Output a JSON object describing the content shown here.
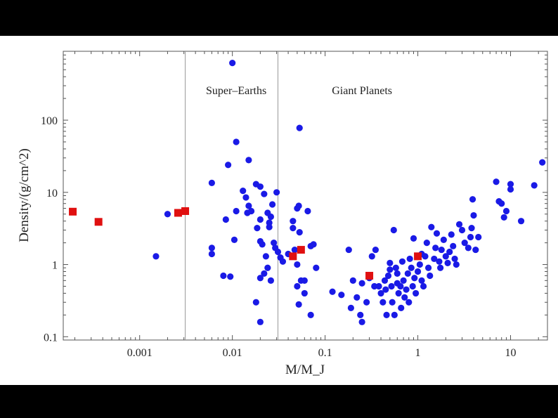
{
  "chart_data": {
    "type": "scatter",
    "xlabel": "M/M_J",
    "ylabel": "Density/(g/cm^2)",
    "xscale": "log",
    "yscale": "log",
    "xlim": [
      0.00015,
      25
    ],
    "ylim": [
      0.09,
      900
    ],
    "x_ticks": [
      {
        "value": 0.001,
        "label": "0.001"
      },
      {
        "value": 0.01,
        "label": "0.01"
      },
      {
        "value": 0.1,
        "label": "0.1"
      },
      {
        "value": 1,
        "label": "1"
      },
      {
        "value": 10,
        "label": "10"
      }
    ],
    "y_ticks": [
      {
        "value": 0.1,
        "label": "0.1"
      },
      {
        "value": 1,
        "label": "1"
      },
      {
        "value": 10,
        "label": "10"
      },
      {
        "value": 100,
        "label": "100"
      }
    ],
    "region_boundaries": [
      0.0031,
      0.031
    ],
    "annotations": [
      {
        "text": "Super–Earths",
        "x": 0.011,
        "y": 230
      },
      {
        "text": "Giant Planets",
        "x": 0.25,
        "y": 230
      }
    ],
    "grid": false,
    "series": [
      {
        "color": "#1a1ae6",
        "marker": "circle",
        "points": [
          [
            0.0015,
            1.3
          ],
          [
            0.002,
            5.0
          ],
          [
            0.006,
            13.5
          ],
          [
            0.006,
            1.7
          ],
          [
            0.006,
            1.4
          ],
          [
            0.0085,
            4.2
          ],
          [
            0.009,
            24
          ],
          [
            0.008,
            0.7
          ],
          [
            0.0095,
            0.68
          ],
          [
            0.01,
            620
          ],
          [
            0.011,
            50
          ],
          [
            0.011,
            5.5
          ],
          [
            0.0105,
            2.2
          ],
          [
            0.013,
            10.5
          ],
          [
            0.014,
            8.5
          ],
          [
            0.015,
            28
          ],
          [
            0.015,
            6.5
          ],
          [
            0.0145,
            5.2
          ],
          [
            0.016,
            5.5
          ],
          [
            0.018,
            13
          ],
          [
            0.02,
            12
          ],
          [
            0.02,
            4.2
          ],
          [
            0.0185,
            3.2
          ],
          [
            0.021,
            1.9
          ],
          [
            0.02,
            2.1
          ],
          [
            0.022,
            9.5
          ],
          [
            0.024,
            5.2
          ],
          [
            0.025,
            3.3
          ],
          [
            0.026,
            4.6
          ],
          [
            0.027,
            6.8
          ],
          [
            0.025,
            3.8
          ],
          [
            0.028,
            2.0
          ],
          [
            0.03,
            10
          ],
          [
            0.029,
            1.7
          ],
          [
            0.024,
            0.9
          ],
          [
            0.023,
            1.3
          ],
          [
            0.022,
            0.75
          ],
          [
            0.02,
            0.65
          ],
          [
            0.018,
            0.3
          ],
          [
            0.02,
            0.16
          ],
          [
            0.026,
            0.6
          ],
          [
            0.031,
            1.5
          ],
          [
            0.033,
            1.25
          ],
          [
            0.035,
            1.1
          ],
          [
            0.04,
            1.4
          ],
          [
            0.045,
            3.2
          ],
          [
            0.045,
            4.0
          ],
          [
            0.047,
            1.6
          ],
          [
            0.05,
            6.0
          ],
          [
            0.052,
            6.5
          ],
          [
            0.053,
            2.8
          ],
          [
            0.05,
            1.0
          ],
          [
            0.05,
            0.5
          ],
          [
            0.055,
            0.6
          ],
          [
            0.06,
            0.4
          ],
          [
            0.052,
            0.28
          ],
          [
            0.06,
            0.6
          ],
          [
            0.065,
            5.5
          ],
          [
            0.07,
            1.8
          ],
          [
            0.075,
            1.9
          ],
          [
            0.07,
            0.2
          ],
          [
            0.08,
            0.9
          ],
          [
            0.053,
            78
          ],
          [
            0.12,
            0.42
          ],
          [
            0.15,
            0.38
          ],
          [
            0.18,
            1.6
          ],
          [
            0.19,
            0.25
          ],
          [
            0.2,
            0.6
          ],
          [
            0.22,
            0.35
          ],
          [
            0.24,
            0.2
          ],
          [
            0.25,
            0.55
          ],
          [
            0.25,
            0.16
          ],
          [
            0.28,
            0.3
          ],
          [
            0.3,
            0.65
          ],
          [
            0.32,
            1.3
          ],
          [
            0.34,
            0.5
          ],
          [
            0.35,
            1.6
          ],
          [
            0.38,
            0.5
          ],
          [
            0.4,
            0.4
          ],
          [
            0.42,
            0.3
          ],
          [
            0.44,
            0.6
          ],
          [
            0.45,
            0.45
          ],
          [
            0.46,
            0.2
          ],
          [
            0.48,
            0.7
          ],
          [
            0.5,
            0.85
          ],
          [
            0.5,
            1.05
          ],
          [
            0.52,
            0.5
          ],
          [
            0.53,
            0.3
          ],
          [
            0.55,
            3.0
          ],
          [
            0.56,
            0.2
          ],
          [
            0.58,
            0.9
          ],
          [
            0.6,
            0.75
          ],
          [
            0.6,
            0.55
          ],
          [
            0.62,
            0.4
          ],
          [
            0.65,
            0.5
          ],
          [
            0.66,
            0.25
          ],
          [
            0.68,
            1.1
          ],
          [
            0.7,
            0.6
          ],
          [
            0.72,
            0.35
          ],
          [
            0.75,
            0.45
          ],
          [
            0.78,
            0.75
          ],
          [
            0.8,
            0.3
          ],
          [
            0.82,
            1.2
          ],
          [
            0.85,
            0.9
          ],
          [
            0.88,
            0.5
          ],
          [
            0.9,
            2.3
          ],
          [
            0.92,
            0.65
          ],
          [
            0.95,
            0.4
          ],
          [
            1.0,
            0.8
          ],
          [
            1.05,
            1.0
          ],
          [
            1.1,
            0.6
          ],
          [
            1.1,
            1.4
          ],
          [
            1.15,
            0.5
          ],
          [
            1.2,
            1.3
          ],
          [
            1.25,
            2.0
          ],
          [
            1.3,
            0.9
          ],
          [
            1.35,
            0.7
          ],
          [
            1.4,
            3.3
          ],
          [
            1.5,
            1.2
          ],
          [
            1.55,
            1.7
          ],
          [
            1.6,
            2.7
          ],
          [
            1.7,
            1.1
          ],
          [
            1.75,
            0.9
          ],
          [
            1.8,
            1.6
          ],
          [
            1.9,
            2.2
          ],
          [
            2.0,
            1.3
          ],
          [
            2.1,
            1.05
          ],
          [
            2.2,
            1.5
          ],
          [
            2.3,
            2.6
          ],
          [
            2.4,
            1.8
          ],
          [
            2.5,
            1.2
          ],
          [
            2.6,
            1.0
          ],
          [
            2.8,
            3.6
          ],
          [
            3.0,
            3.0
          ],
          [
            3.2,
            2.0
          ],
          [
            3.5,
            1.7
          ],
          [
            3.7,
            2.4
          ],
          [
            3.8,
            3.2
          ],
          [
            4.0,
            4.8
          ],
          [
            4.2,
            1.6
          ],
          [
            3.9,
            8.0
          ],
          [
            4.5,
            2.4
          ],
          [
            7.0,
            14
          ],
          [
            7.5,
            7.5
          ],
          [
            8.0,
            7.0
          ],
          [
            8.5,
            4.5
          ],
          [
            9.0,
            5.5
          ],
          [
            10,
            13
          ],
          [
            10,
            11
          ],
          [
            13,
            4.0
          ],
          [
            18,
            12.5
          ],
          [
            22,
            26
          ]
        ]
      },
      {
        "color": "#e01010",
        "marker": "square",
        "points": [
          [
            0.00019,
            5.4
          ],
          [
            0.00036,
            3.9
          ],
          [
            0.0026,
            5.2
          ],
          [
            0.0031,
            5.5
          ],
          [
            0.045,
            1.3
          ],
          [
            0.055,
            1.6
          ],
          [
            0.3,
            0.7
          ],
          [
            1.0,
            1.3
          ]
        ]
      }
    ]
  }
}
